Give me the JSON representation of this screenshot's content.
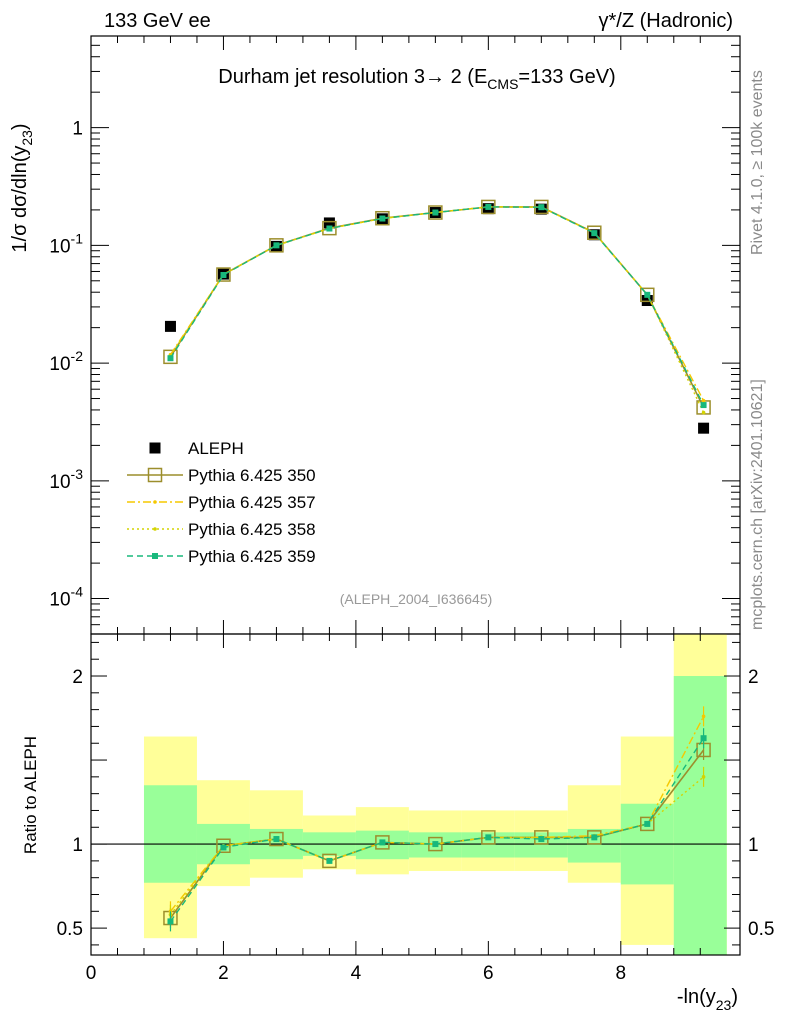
{
  "header": {
    "left": "133 GeV ee",
    "right": "γ*/Z (Hadronic)"
  },
  "side_labels": {
    "rivet": "Rivet 4.1.0, ≥ 100k events",
    "site": "mcplots.cern.ch [arXiv:2401.10621]"
  },
  "chart_data": [
    {
      "type": "line",
      "title": "Durham jet resolution 3→ 2 (E_CMS=133 GeV)",
      "ylabel": "1/σ dσ/dln(y_23)",
      "xlabel": "",
      "yscale": "log",
      "xlim": [
        0,
        9.8
      ],
      "ylim": [
        5e-05,
        6
      ],
      "watermark": "(ALEPH_2004_I636645)",
      "ytick_labels": [
        "1",
        "10^-1",
        "10^-2",
        "10^-3",
        "10^-4"
      ],
      "x": [
        1.2,
        2.0,
        2.8,
        3.6,
        4.4,
        5.2,
        6.0,
        6.8,
        7.6,
        8.4,
        9.25
      ],
      "series": [
        {
          "name": "ALEPH",
          "color": "#000000",
          "style": "data",
          "values": [
            0.0205,
            0.057,
            0.098,
            0.155,
            0.168,
            0.19,
            0.205,
            0.203,
            0.123,
            0.034,
            0.0028
          ]
        },
        {
          "name": "Pythia 6.425 350",
          "color": "#9c8e2c",
          "style": "open-square",
          "values": [
            0.0113,
            0.0565,
            0.1,
            0.14,
            0.17,
            0.19,
            0.212,
            0.212,
            0.128,
            0.038,
            0.0042
          ]
        },
        {
          "name": "Pythia 6.425 357",
          "color": "#f5c800",
          "style": "dashdot",
          "values": [
            0.0118,
            0.0565,
            0.1,
            0.139,
            0.169,
            0.19,
            0.213,
            0.211,
            0.128,
            0.038,
            0.0048
          ]
        },
        {
          "name": "Pythia 6.425 358",
          "color": "#d4d400",
          "style": "dotted",
          "values": [
            0.0116,
            0.0565,
            0.1,
            0.139,
            0.169,
            0.19,
            0.212,
            0.211,
            0.128,
            0.038,
            0.0038
          ]
        },
        {
          "name": "Pythia 6.425 359",
          "color": "#18b87c",
          "style": "dashed",
          "values": [
            0.011,
            0.056,
            0.1,
            0.139,
            0.169,
            0.19,
            0.212,
            0.211,
            0.127,
            0.038,
            0.0044
          ]
        }
      ]
    },
    {
      "type": "line",
      "ylabel": "Ratio to ALEPH",
      "xlabel": "-ln(y_23)",
      "xlim": [
        0,
        9.8
      ],
      "ylim": [
        0.34,
        2.25
      ],
      "xticks": [
        0,
        2,
        4,
        6,
        8
      ],
      "yticks": [
        0.5,
        1,
        2
      ],
      "bands": {
        "edges": [
          0.8,
          1.6,
          2.4,
          3.2,
          4.0,
          4.8,
          5.6,
          6.4,
          7.2,
          8.0,
          8.8,
          9.6
        ],
        "green": [
          [
            0.77,
            1.35
          ],
          [
            0.88,
            1.12
          ],
          [
            0.91,
            1.09
          ],
          [
            0.93,
            1.07
          ],
          [
            0.91,
            1.08
          ],
          [
            0.92,
            1.07
          ],
          [
            0.92,
            1.07
          ],
          [
            0.92,
            1.07
          ],
          [
            0.89,
            1.09
          ],
          [
            0.76,
            1.24
          ],
          [
            0.34,
            2.0
          ]
        ],
        "yellow": [
          [
            0.44,
            1.64
          ],
          [
            0.75,
            1.38
          ],
          [
            0.8,
            1.32
          ],
          [
            0.85,
            1.17
          ],
          [
            0.82,
            1.22
          ],
          [
            0.84,
            1.2
          ],
          [
            0.84,
            1.2
          ],
          [
            0.84,
            1.2
          ],
          [
            0.77,
            1.35
          ],
          [
            0.4,
            1.64
          ],
          [
            0.34,
            2.25
          ]
        ]
      },
      "x": [
        1.2,
        2.0,
        2.8,
        3.6,
        4.4,
        5.2,
        6.0,
        6.8,
        7.6,
        8.4,
        9.25
      ],
      "series": [
        {
          "name": "Pythia 6.425 350",
          "color": "#9c8e2c",
          "style": "open-square",
          "values": [
            0.56,
            0.99,
            1.03,
            0.9,
            1.01,
            1.0,
            1.04,
            1.04,
            1.04,
            1.12,
            1.56
          ]
        },
        {
          "name": "Pythia 6.425 357",
          "color": "#f5c800",
          "style": "dashdot",
          "values": [
            0.6,
            0.99,
            1.03,
            0.9,
            1.01,
            1.0,
            1.04,
            1.04,
            1.05,
            1.12,
            1.76
          ]
        },
        {
          "name": "Pythia 6.425 358",
          "color": "#d4d400",
          "style": "dotted",
          "values": [
            0.58,
            0.99,
            1.03,
            0.9,
            1.01,
            1.0,
            1.04,
            1.04,
            1.04,
            1.12,
            1.4
          ]
        },
        {
          "name": "Pythia 6.425 359",
          "color": "#18b87c",
          "style": "dashed",
          "values": [
            0.54,
            0.98,
            1.03,
            0.9,
            1.01,
            1.0,
            1.04,
            1.03,
            1.04,
            1.12,
            1.63
          ]
        }
      ]
    }
  ]
}
